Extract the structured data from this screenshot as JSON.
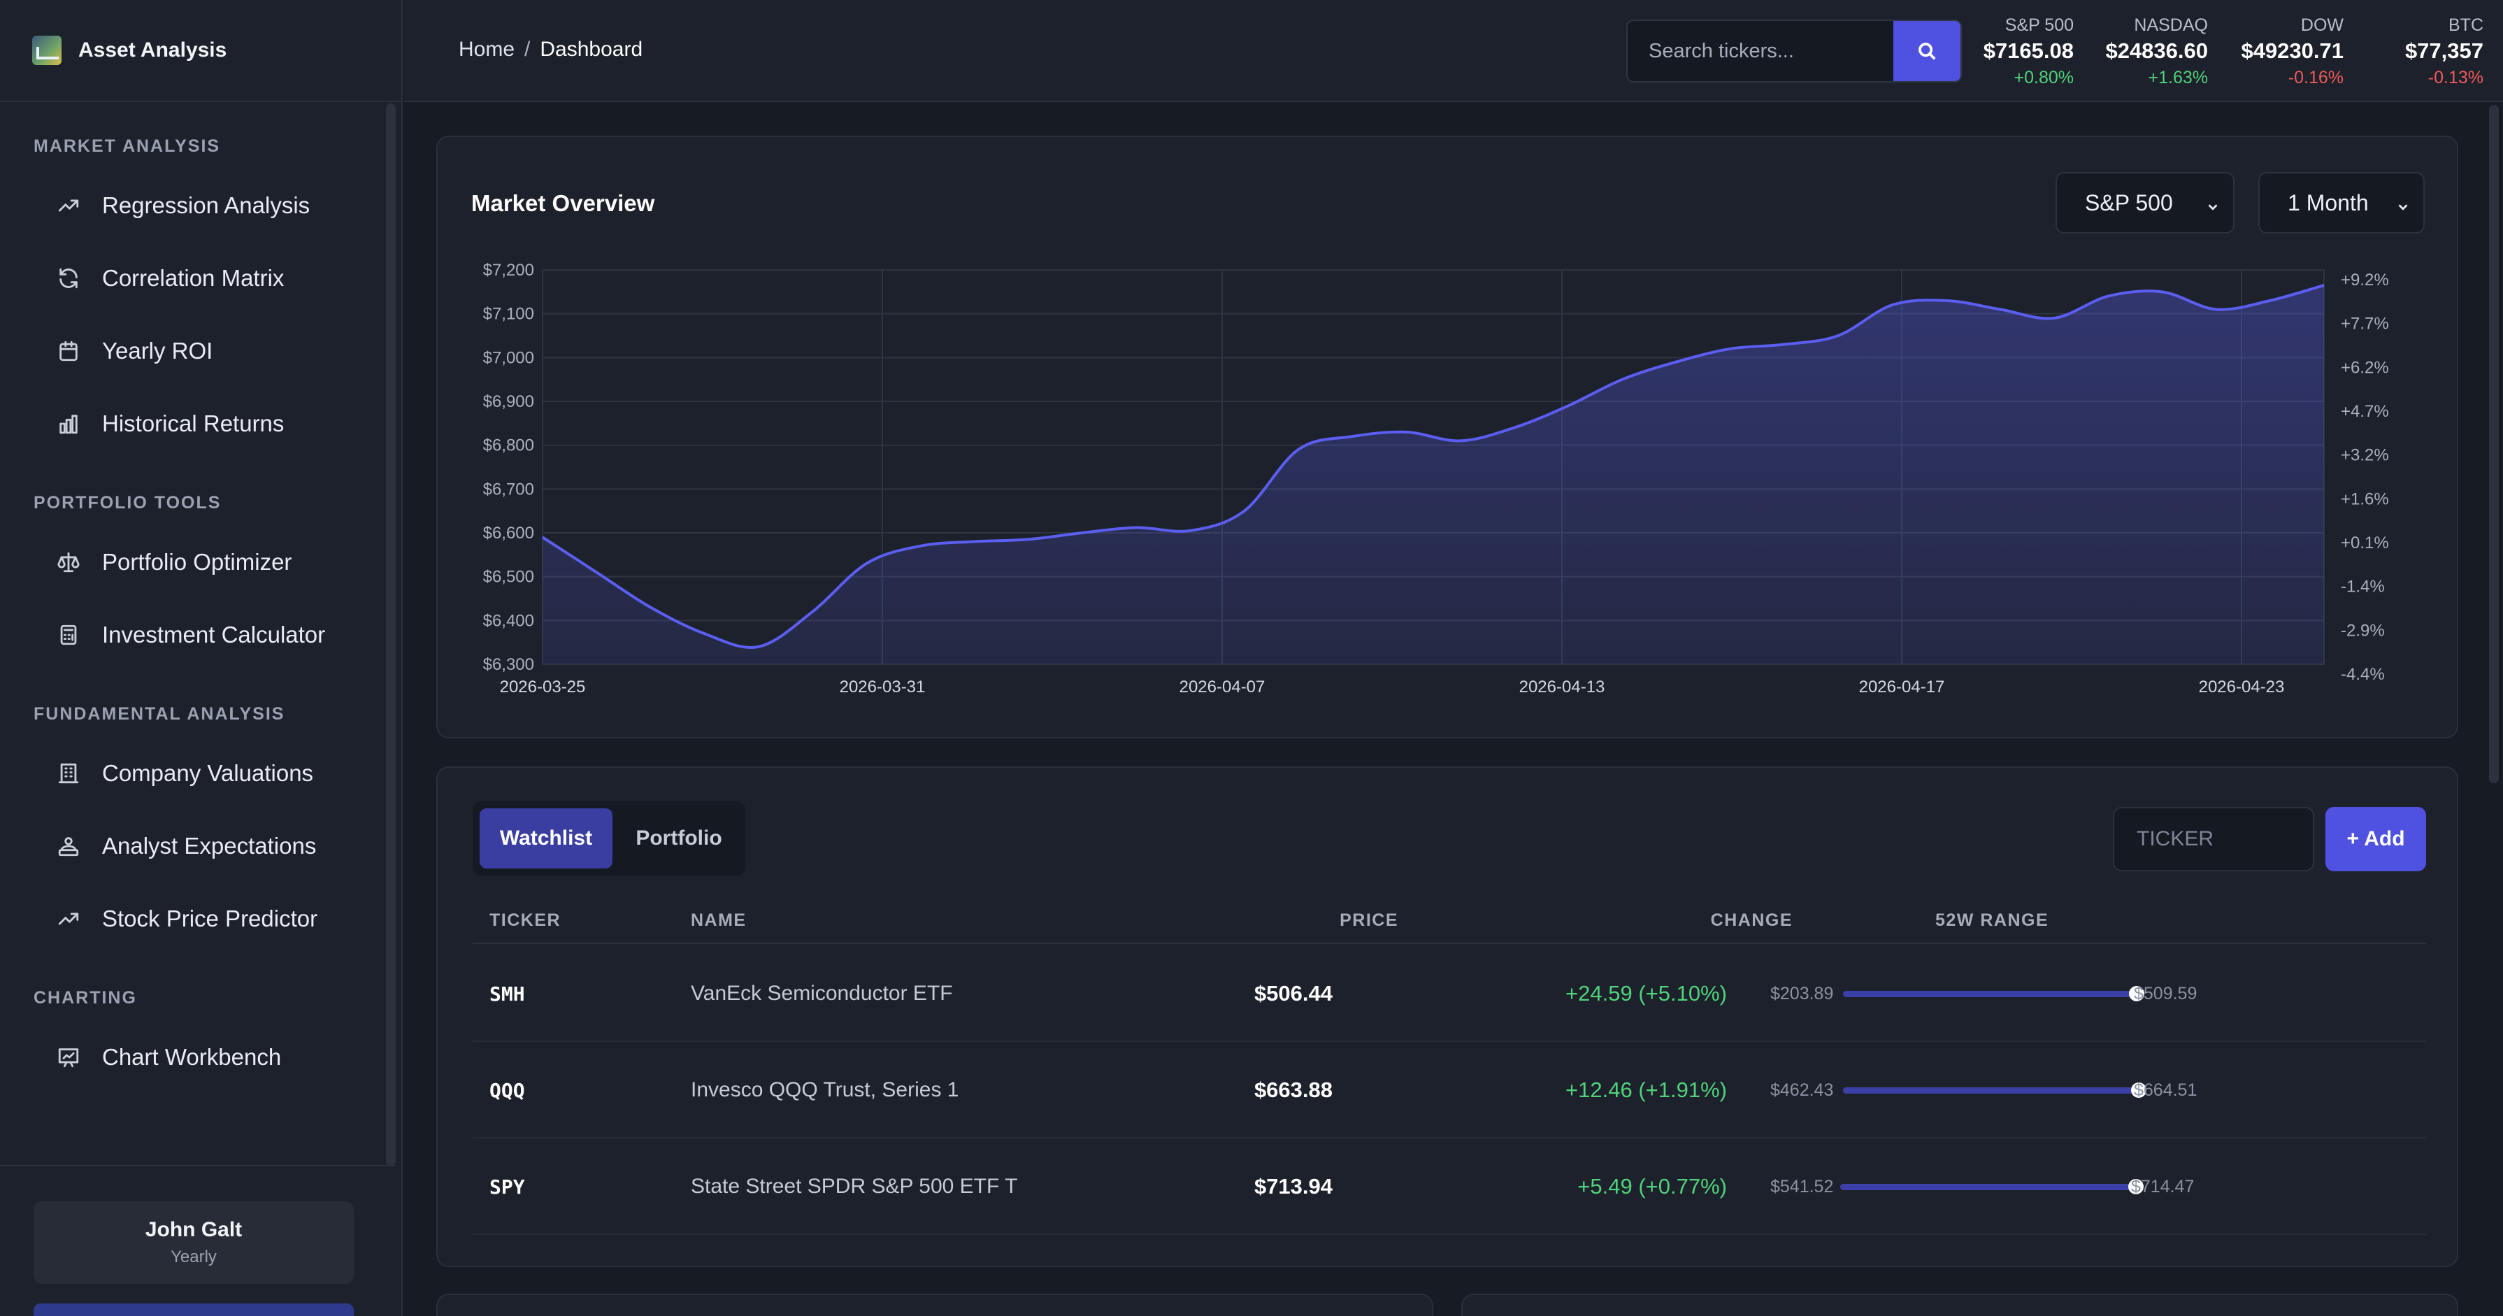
{
  "app": {
    "title": "Asset Analysis"
  },
  "sidebar": {
    "sections": [
      {
        "heading": "MARKET ANALYSIS",
        "items": [
          {
            "label": "Regression Analysis",
            "icon": "trending-up-icon"
          },
          {
            "label": "Correlation Matrix",
            "icon": "refresh-icon"
          },
          {
            "label": "Yearly ROI",
            "icon": "calendar-icon"
          },
          {
            "label": "Historical Returns",
            "icon": "bar-chart-icon"
          }
        ]
      },
      {
        "heading": "PORTFOLIO TOOLS",
        "items": [
          {
            "label": "Portfolio Optimizer",
            "icon": "scale-icon"
          },
          {
            "label": "Investment Calculator",
            "icon": "calculator-icon"
          }
        ]
      },
      {
        "heading": "FUNDAMENTAL ANALYSIS",
        "items": [
          {
            "label": "Company Valuations",
            "icon": "building-icon"
          },
          {
            "label": "Analyst Expectations",
            "icon": "analyst-icon"
          },
          {
            "label": "Stock Price Predictor",
            "icon": "trending-up-icon"
          }
        ]
      },
      {
        "heading": "CHARTING",
        "items": [
          {
            "label": "Chart Workbench",
            "icon": "presentation-chart-icon"
          }
        ]
      }
    ],
    "user": {
      "name": "John Galt",
      "plan": "Yearly"
    }
  },
  "header": {
    "breadcrumb": {
      "home": "Home",
      "separator": "/",
      "current": "Dashboard"
    },
    "search": {
      "placeholder": "Search tickers..."
    },
    "tickers": [
      {
        "name": "S&P 500",
        "value": "$7165.08",
        "change": "+0.80%",
        "direction": "up"
      },
      {
        "name": "NASDAQ",
        "value": "$24836.60",
        "change": "+1.63%",
        "direction": "up"
      },
      {
        "name": "DOW",
        "value": "$49230.71",
        "change": "-0.16%",
        "direction": "down"
      },
      {
        "name": "BTC",
        "value": "$77,357",
        "change": "-0.13%",
        "direction": "down"
      }
    ]
  },
  "market_overview": {
    "title": "Market Overview",
    "index_select": "S&P 500",
    "period_select": "1 Month"
  },
  "chart_data": {
    "type": "area",
    "title": "",
    "xlabel": "",
    "ylabel": "",
    "ylim": [
      6300,
      7200
    ],
    "y_ticks": [
      "$7,200",
      "$7,100",
      "$7,000",
      "$6,900",
      "$6,800",
      "$6,700",
      "$6,600",
      "$6,500",
      "$6,400",
      "$6,300"
    ],
    "y2_ticks": [
      "+9.2%",
      "+7.7%",
      "+6.2%",
      "+4.7%",
      "+3.2%",
      "+1.6%",
      "+0.1%",
      "-1.4%",
      "-2.9%",
      "-4.4%"
    ],
    "x_ticks": [
      "2026-03-25",
      "2026-03-31",
      "2026-04-07",
      "2026-04-13",
      "2026-04-17",
      "2026-04-23"
    ],
    "grid": true,
    "color": "#5b5ef0",
    "series": [
      {
        "values": [
          6590,
          6510,
          6430,
          6370,
          6340,
          6420,
          6530,
          6570,
          6580,
          6585,
          6600,
          6612,
          6605,
          6650,
          6790,
          6820,
          6830,
          6810,
          6840,
          6890,
          6950,
          6990,
          7020,
          7030,
          7050,
          7120,
          7130,
          7110,
          7090,
          7140,
          7150,
          7110,
          7130,
          7165
        ]
      }
    ]
  },
  "watchlist": {
    "tabs": [
      {
        "label": "Watchlist",
        "active": true
      },
      {
        "label": "Portfolio",
        "active": false
      }
    ],
    "ticker_input_placeholder": "TICKER",
    "add_label": "+ Add",
    "columns": {
      "ticker": "TICKER",
      "name": "NAME",
      "price": "PRICE",
      "change": "CHANGE",
      "range": "52W RANGE"
    },
    "rows": [
      {
        "ticker": "SMH",
        "name": "VanEck Semiconductor ETF",
        "price": "$506.44",
        "change": "+24.59 (+5.10%)",
        "low": "$203.89",
        "high": "$509.59",
        "position": 0.99
      },
      {
        "ticker": "QQQ",
        "name": "Invesco QQQ Trust, Series 1",
        "price": "$663.88",
        "change": "+12.46 (+1.91%)",
        "low": "$462.43",
        "high": "$664.51",
        "position": 0.997
      },
      {
        "ticker": "SPY",
        "name": "State Street SPDR S&P 500 ETF T",
        "price": "$713.94",
        "change": "+5.49 (+0.77%)",
        "low": "$541.52",
        "high": "$714.47",
        "position": 0.997
      }
    ]
  }
}
